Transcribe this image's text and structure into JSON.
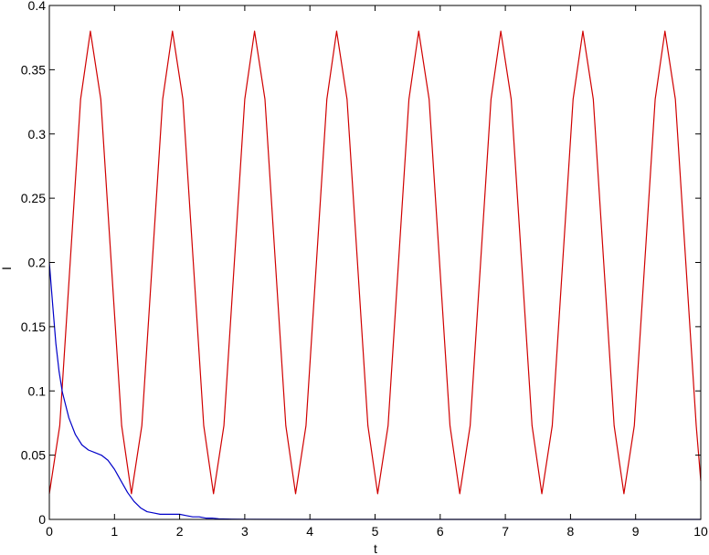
{
  "chart_data": {
    "type": "line",
    "title": "",
    "xlabel": "t",
    "ylabel": "I",
    "xlim": [
      0,
      10
    ],
    "ylim": [
      0,
      0.4
    ],
    "xticks": [
      0,
      1,
      2,
      3,
      4,
      5,
      6,
      7,
      8,
      9,
      10
    ],
    "yticks": [
      0,
      0.05,
      0.1,
      0.15,
      0.2,
      0.25,
      0.3,
      0.35,
      0.4
    ],
    "xtick_labels": [
      "0",
      "1",
      "2",
      "3",
      "4",
      "5",
      "6",
      "7",
      "8",
      "9",
      "10"
    ],
    "ytick_labels": [
      "0",
      "0.05",
      "0.1",
      "0.15",
      "0.2",
      "0.25",
      "0.3",
      "0.35",
      "0.4"
    ],
    "grid": false,
    "legend": "none",
    "series": [
      {
        "color": "#d00000",
        "x": [
          0,
          0.16,
          0.32,
          0.48,
          0.63,
          0.79,
          0.95,
          1.11,
          1.26,
          1.42,
          1.58,
          1.74,
          1.89,
          2.05,
          2.21,
          2.37,
          2.52,
          2.68,
          2.84,
          3.0,
          3.15,
          3.31,
          3.47,
          3.63,
          3.78,
          3.94,
          4.1,
          4.26,
          4.41,
          4.57,
          4.73,
          4.89,
          5.04,
          5.2,
          5.36,
          5.52,
          5.67,
          5.83,
          5.99,
          6.15,
          6.3,
          6.46,
          6.62,
          6.78,
          6.93,
          7.09,
          7.25,
          7.41,
          7.56,
          7.72,
          7.88,
          8.04,
          8.19,
          8.35,
          8.51,
          8.67,
          8.82,
          8.98,
          9.14,
          9.3,
          9.45,
          9.61,
          9.77,
          9.93,
          10.0
        ],
        "y": [
          0.02,
          0.073,
          0.2,
          0.327,
          0.38,
          0.327,
          0.2,
          0.073,
          0.02,
          0.073,
          0.2,
          0.327,
          0.38,
          0.327,
          0.2,
          0.073,
          0.02,
          0.073,
          0.2,
          0.327,
          0.38,
          0.327,
          0.2,
          0.073,
          0.02,
          0.073,
          0.2,
          0.327,
          0.38,
          0.327,
          0.2,
          0.073,
          0.02,
          0.073,
          0.2,
          0.327,
          0.38,
          0.327,
          0.2,
          0.073,
          0.02,
          0.073,
          0.2,
          0.327,
          0.38,
          0.327,
          0.2,
          0.073,
          0.02,
          0.073,
          0.2,
          0.327,
          0.38,
          0.327,
          0.2,
          0.073,
          0.02,
          0.073,
          0.2,
          0.327,
          0.38,
          0.327,
          0.2,
          0.073,
          0.03
        ]
      },
      {
        "color": "#0000c8",
        "x": [
          0,
          0.05,
          0.1,
          0.15,
          0.2,
          0.3,
          0.4,
          0.5,
          0.6,
          0.7,
          0.8,
          0.9,
          1.0,
          1.1,
          1.2,
          1.3,
          1.4,
          1.5,
          1.6,
          1.7,
          1.8,
          1.9,
          2.0,
          2.1,
          2.2,
          2.3,
          2.4,
          2.5,
          2.6,
          2.8,
          3.0,
          4.0,
          5.0,
          6.0,
          7.0,
          8.0,
          9.0,
          10.0
        ],
        "y": [
          0.2,
          0.168,
          0.137,
          0.115,
          0.099,
          0.079,
          0.066,
          0.058,
          0.054,
          0.052,
          0.05,
          0.046,
          0.039,
          0.03,
          0.021,
          0.014,
          0.009,
          0.006,
          0.005,
          0.004,
          0.004,
          0.004,
          0.004,
          0.003,
          0.002,
          0.002,
          0.001,
          0.001,
          0.0005,
          0.0002,
          0.0001,
          0,
          0,
          0,
          0,
          0,
          0,
          0
        ]
      }
    ]
  }
}
